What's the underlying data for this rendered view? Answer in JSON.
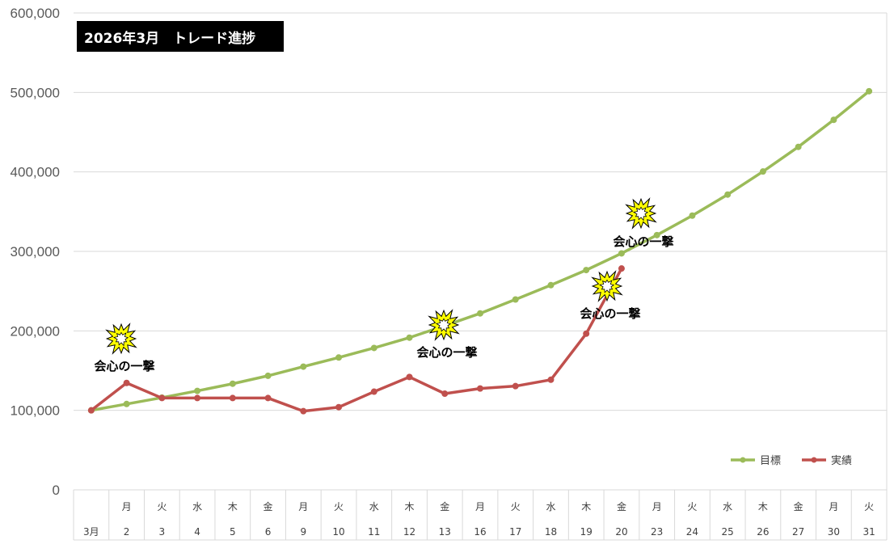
{
  "chart_data": {
    "type": "line",
    "title": "2026年3月　トレード進捗",
    "ylim": [
      0,
      600000
    ],
    "y_ticks": [
      "0",
      "100,000",
      "200,000",
      "300,000",
      "400,000",
      "500,000",
      "600,000"
    ],
    "grid": true,
    "legend_position": "bottom-right",
    "x": [
      "3月",
      "2",
      "3",
      "4",
      "5",
      "6",
      "9",
      "10",
      "11",
      "12",
      "13",
      "16",
      "17",
      "18",
      "19",
      "20",
      "23",
      "24",
      "25",
      "26",
      "27",
      "30",
      "31"
    ],
    "weekdays": [
      "",
      "月",
      "火",
      "水",
      "木",
      "金",
      "月",
      "火",
      "水",
      "木",
      "金",
      "月",
      "火",
      "水",
      "木",
      "金",
      "月",
      "火",
      "水",
      "木",
      "金",
      "月",
      "火"
    ],
    "series": [
      {
        "name": "目標",
        "color": "#9BBB59",
        "values": [
          100000,
          108000,
          116000,
          124500,
          133500,
          143500,
          155000,
          166500,
          178500,
          191500,
          206500,
          222000,
          239500,
          257500,
          276500,
          297500,
          320500,
          345000,
          371500,
          400500,
          431500,
          465500,
          501500
        ]
      },
      {
        "name": "実績",
        "color": "#C0504D",
        "values": [
          100000,
          134500,
          115500,
          115500,
          115500,
          115500,
          99000,
          104000,
          123500,
          142000,
          121000,
          127500,
          130500,
          138500,
          196500,
          278500,
          null,
          null,
          null,
          null,
          null,
          null,
          null
        ]
      }
    ],
    "annotations": [
      {
        "text": "会心の一撃",
        "point_index": 1
      },
      {
        "text": "会心の一撃",
        "point_index": 10
      },
      {
        "text": "会心の一撃",
        "point_index": 14
      },
      {
        "text": "会心の一撃",
        "point_index": 15
      }
    ],
    "burst_icon": "explosion-icon",
    "burst_color": "#FFFF00"
  }
}
